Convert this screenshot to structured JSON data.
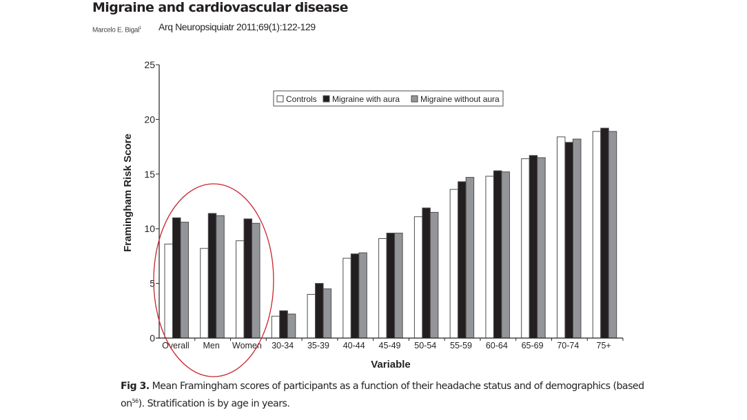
{
  "header": {
    "title": "Migraine and cardiovascular disease",
    "author": "Marcelo E. Bigal",
    "author_sup": "1",
    "citation": "Arq Neuropsiquiatr 2011;69(1):122-129"
  },
  "caption": {
    "label": "Fig 3.",
    "text_before_sup": " Mean Framingham scores of participants as a function of their headache status and of demographics (based on",
    "sup": "56",
    "text_after_sup": "). Stratification is by age in years."
  },
  "annotation": {
    "type": "ellipse",
    "color": "#c8232c",
    "encloses": [
      "Overall",
      "Men",
      "Women"
    ]
  },
  "chart_data": {
    "type": "bar",
    "title": "",
    "xlabel": "Variable",
    "ylabel": "Framingham Risk Score",
    "ylim": [
      0,
      25
    ],
    "yticks": [
      0,
      5,
      10,
      15,
      20,
      25
    ],
    "grid": false,
    "legend_position": "top-center",
    "categories": [
      "Overall",
      "Men",
      "Women",
      "30-34",
      "35-39",
      "40-44",
      "45-49",
      "50-54",
      "55-59",
      "60-64",
      "65-69",
      "70-74",
      "75+"
    ],
    "series": [
      {
        "name": "Controls",
        "color": "#ffffff",
        "values": [
          8.6,
          8.2,
          8.9,
          2.0,
          4.0,
          7.3,
          9.1,
          11.1,
          13.6,
          14.8,
          16.4,
          18.4,
          18.9
        ]
      },
      {
        "name": "Migraine with aura",
        "color": "#231f20",
        "values": [
          11.0,
          11.4,
          10.9,
          2.5,
          5.0,
          7.7,
          9.6,
          11.9,
          14.3,
          15.3,
          16.7,
          17.9,
          19.2
        ]
      },
      {
        "name": "Migraine without aura",
        "color": "#939598",
        "values": [
          10.6,
          11.2,
          10.5,
          2.2,
          4.5,
          7.8,
          9.6,
          11.5,
          14.7,
          15.2,
          16.5,
          18.2,
          18.9
        ]
      }
    ]
  }
}
